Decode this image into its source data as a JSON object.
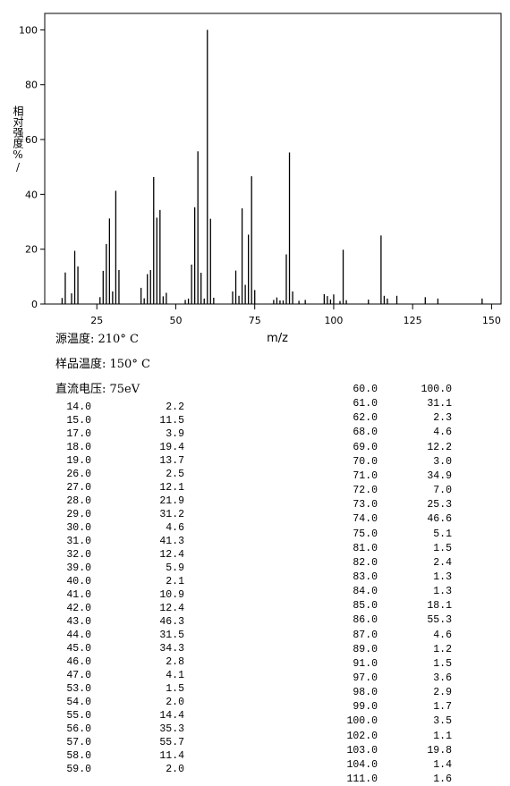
{
  "chart_data": {
    "type": "stick",
    "x_label": "m/z",
    "y_label": "相对强度%/",
    "annotations": [
      "源温度: 210° C",
      "样品温度: 150° C",
      "直流电压: 75eV"
    ],
    "xlim": [
      8.5,
      153
    ],
    "xticks": [
      25,
      50,
      75,
      100,
      125,
      150
    ],
    "ylim": [
      0,
      106
    ],
    "yticks": [
      0,
      20,
      40,
      60,
      80,
      100
    ],
    "color": "#000000",
    "series": [
      {
        "x": [
          14,
          15,
          17,
          18,
          19,
          26,
          27,
          28,
          29,
          30,
          31,
          32,
          39,
          40,
          41,
          42,
          43,
          44,
          45,
          46,
          47,
          53,
          54,
          55,
          56,
          57,
          58,
          59,
          60,
          61,
          62,
          68,
          69,
          70,
          71,
          72,
          73,
          74,
          75,
          81,
          82,
          83,
          84,
          85,
          86,
          87,
          89,
          91,
          97,
          98,
          99,
          100,
          102,
          103,
          104,
          111
        ],
        "x_labels": [
          "14.0",
          "15.0",
          "17.0",
          "18.0",
          "19.0",
          "26.0",
          "27.0",
          "28.0",
          "29.0",
          "30.0",
          "31.0",
          "32.0",
          "39.0",
          "40.0",
          "41.0",
          "42.0",
          "43.0",
          "44.0",
          "45.0",
          "46.0",
          "47.0",
          "53.0",
          "54.0",
          "55.0",
          "56.0",
          "57.0",
          "58.0",
          "59.0",
          "60.0",
          "61.0",
          "62.0",
          "68.0",
          "69.0",
          "70.0",
          "71.0",
          "72.0",
          "73.0",
          "74.0",
          "75.0",
          "81.0",
          "82.0",
          "83.0",
          "84.0",
          "85.0",
          "86.0",
          "87.0",
          "89.0",
          "91.0",
          "97.0",
          "98.0",
          "99.0",
          "100.0",
          "102.0",
          "103.0",
          "104.0",
          "111.0"
        ],
        "values": [
          2.2,
          11.5,
          3.9,
          19.4,
          13.7,
          2.5,
          12.1,
          21.9,
          31.2,
          4.6,
          41.3,
          12.4,
          5.9,
          2.1,
          10.9,
          12.4,
          46.3,
          31.5,
          34.3,
          2.8,
          4.1,
          1.5,
          2.0,
          14.4,
          35.3,
          55.7,
          11.4,
          2.0,
          100,
          31.1,
          2.3,
          4.6,
          12.2,
          3.0,
          34.9,
          7.0,
          25.3,
          46.6,
          5.1,
          1.5,
          2.4,
          1.3,
          1.3,
          18.1,
          55.3,
          4.6,
          1.2,
          1.5,
          3.6,
          2.9,
          1.7,
          3.5,
          1.1,
          19.8,
          1.4,
          1.6
        ],
        "value_labels": [
          "2.2",
          "11.5",
          "3.9",
          "19.4",
          "13.7",
          "2.5",
          "12.1",
          "21.9",
          "31.2",
          "4.6",
          "41.3",
          "12.4",
          "5.9",
          "2.1",
          "10.9",
          "12.4",
          "46.3",
          "31.5",
          "34.3",
          "2.8",
          "4.1",
          "1.5",
          "2.0",
          "14.4",
          "35.3",
          "55.7",
          "11.4",
          "2.0",
          "100.0",
          "31.1",
          "2.3",
          "4.6",
          "12.2",
          "3.0",
          "34.9",
          "7.0",
          "25.3",
          "46.6",
          "5.1",
          "1.5",
          "2.4",
          "1.3",
          "1.3",
          "18.1",
          "55.3",
          "4.6",
          "1.2",
          "1.5",
          "3.6",
          "2.9",
          "1.7",
          "3.5",
          "1.1",
          "19.8",
          "1.4",
          "1.6"
        ]
      },
      {
        "x": [
          115,
          116,
          117,
          120,
          129,
          133,
          147
        ],
        "values": [
          25,
          3,
          2,
          3,
          2.5,
          2,
          2
        ]
      }
    ]
  }
}
